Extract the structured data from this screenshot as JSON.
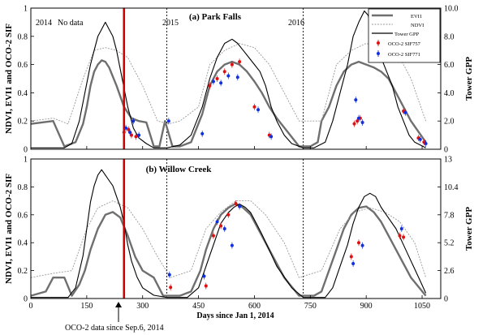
{
  "annotation": {
    "oco2_start_label": "OCO-2 data since Sep.6, 2014",
    "oco2_start_day": 250
  },
  "chart_data": [
    {
      "type": "line",
      "title": "(a) Park Falls",
      "xlabel": "Days since Jan 1, 2014",
      "ylabel": "NDVI, EVI1 and OCO-2 SIF",
      "y2label": "Tower GPP",
      "xlim": [
        0,
        1100
      ],
      "ylim": [
        0,
        1
      ],
      "y2lim": [
        0,
        10
      ],
      "xticks": [
        "0",
        "150",
        "300",
        "450",
        "600",
        "750",
        "900",
        "1050"
      ],
      "yticks": [
        "0",
        "0.2",
        "0.4",
        "0.6",
        "0.8",
        "1"
      ],
      "y2ticks": [
        "0",
        "2.0",
        "4.0",
        "6.0",
        "8.0",
        "10.0"
      ],
      "year_labels": [
        {
          "label": "2014",
          "day": 10
        },
        {
          "label": "No data",
          "day": 75
        },
        {
          "label": "2015",
          "day": 375
        },
        {
          "label": "2016",
          "day": 740
        }
      ],
      "year_boundaries": [
        365,
        731
      ],
      "oco2_start_day": 250,
      "legend": [
        {
          "key": "evi",
          "label": "EVI1"
        },
        {
          "key": "ndvi",
          "label": "NDVI"
        },
        {
          "key": "gpp",
          "label": "Tower GPP"
        },
        {
          "key": "sif757",
          "label": "OCO-2 SIF757"
        },
        {
          "key": "sif771",
          "label": "OCO-2 SIF771"
        }
      ],
      "series": [
        {
          "name": "EVI1",
          "x": [
            0,
            60,
            90,
            120,
            140,
            150,
            160,
            170,
            180,
            190,
            200,
            210,
            230,
            250,
            270,
            290,
            310,
            330,
            345,
            360,
            380,
            400,
            430,
            460,
            480,
            500,
            520,
            540,
            560,
            580,
            600,
            620,
            640,
            660,
            690,
            720,
            750,
            770,
            780,
            800,
            820,
            840,
            860,
            880,
            900,
            920,
            940,
            960,
            980,
            1000,
            1020,
            1060
          ],
          "y": [
            0.18,
            0.2,
            0.02,
            0.05,
            0.18,
            0.3,
            0.45,
            0.55,
            0.6,
            0.63,
            0.62,
            0.58,
            0.45,
            0.3,
            0.22,
            0.2,
            0.19,
            0.02,
            0.02,
            0.2,
            0.02,
            0.02,
            0.05,
            0.25,
            0.45,
            0.55,
            0.6,
            0.62,
            0.6,
            0.55,
            0.48,
            0.4,
            0.3,
            0.22,
            0.12,
            0.02,
            0.02,
            0.05,
            0.2,
            0.3,
            0.45,
            0.55,
            0.6,
            0.62,
            0.6,
            0.58,
            0.55,
            0.5,
            0.4,
            0.3,
            0.2,
            0.05
          ]
        },
        {
          "name": "NDVI",
          "x": [
            0,
            60,
            100,
            140,
            170,
            200,
            230,
            260,
            300,
            340,
            370,
            400,
            450,
            480,
            520,
            560,
            600,
            640,
            680,
            720,
            780,
            820,
            860,
            900,
            940,
            980,
            1020,
            1060
          ],
          "y": [
            0.2,
            0.22,
            0.18,
            0.5,
            0.7,
            0.72,
            0.7,
            0.65,
            0.45,
            0.2,
            0.18,
            0.2,
            0.3,
            0.6,
            0.7,
            0.75,
            0.72,
            0.6,
            0.4,
            0.2,
            0.2,
            0.6,
            0.7,
            0.75,
            0.72,
            0.7,
            0.5,
            0.2
          ]
        },
        {
          "name": "Tower GPP",
          "x": [
            0,
            90,
            110,
            130,
            145,
            160,
            170,
            180,
            190,
            200,
            210,
            220,
            230,
            245,
            260,
            275,
            290,
            310,
            330,
            365,
            400,
            430,
            460,
            480,
            500,
            520,
            540,
            555,
            570,
            585,
            600,
            615,
            630,
            645,
            660,
            680,
            700,
            731,
            760,
            790,
            810,
            830,
            850,
            865,
            880,
            895,
            905,
            915,
            925,
            940,
            955,
            970,
            985,
            1000,
            1015,
            1030,
            1060
          ],
          "y": [
            0.1,
            0.1,
            0.4,
            2,
            4,
            6,
            7,
            8,
            8.5,
            9,
            8.5,
            8,
            7,
            5,
            3,
            1.5,
            0.8,
            0.4,
            0.1,
            0.1,
            0.3,
            1,
            3,
            5,
            6.5,
            7.5,
            7.8,
            7.5,
            7,
            6.5,
            6,
            5.5,
            4.5,
            3,
            2,
            1,
            0.4,
            0.1,
            0.1,
            0.5,
            2,
            4,
            6,
            8,
            9,
            9.8,
            9.5,
            8.5,
            7.5,
            6.5,
            5.5,
            4.5,
            3,
            2,
            1,
            0.5,
            0.1
          ]
        }
      ],
      "points": {
        "sif757": {
          "x": [
            250,
            262,
            270,
            282,
            480,
            500,
            520,
            540,
            560,
            600,
            640,
            868,
            876,
            884,
            1000,
            1040,
            1055
          ],
          "y": [
            0.12,
            0.14,
            0.1,
            0.09,
            0.45,
            0.5,
            0.55,
            0.6,
            0.62,
            0.3,
            0.1,
            0.18,
            0.2,
            0.22,
            0.27,
            0.08,
            0.05
          ]
        },
        "sif771": {
          "x": [
            255,
            266,
            275,
            290,
            370,
            460,
            490,
            510,
            530,
            555,
            610,
            645,
            872,
            880,
            890,
            1005,
            1045,
            1060
          ],
          "y": [
            0.15,
            0.12,
            0.2,
            0.1,
            0.2,
            0.11,
            0.48,
            0.47,
            0.52,
            0.51,
            0.28,
            0.09,
            0.35,
            0.22,
            0.19,
            0.26,
            0.07,
            0.04
          ]
        }
      }
    },
    {
      "type": "line",
      "title": "(b) Willow Creek",
      "xlabel": "Days since Jan 1, 2014",
      "ylabel": "NDVI, EVI1 and OCO-2 SIF",
      "y2label": "Tower GPP",
      "xlim": [
        0,
        1100
      ],
      "ylim": [
        0,
        1
      ],
      "y2lim": [
        0,
        13
      ],
      "xticks": [
        "0",
        "150",
        "300",
        "450",
        "600",
        "750",
        "900",
        "1050"
      ],
      "yticks": [
        "0",
        "0.2",
        "0.4",
        "0.6",
        "0.8",
        "1"
      ],
      "y2ticks": [
        "0",
        "2.6",
        "5.2",
        "7.8",
        "10.4",
        "13"
      ],
      "year_boundaries": [
        365,
        731
      ],
      "oco2_start_day": 250,
      "series": [
        {
          "name": "EVI1",
          "x": [
            0,
            40,
            60,
            90,
            110,
            130,
            145,
            160,
            180,
            200,
            220,
            240,
            260,
            280,
            300,
            330,
            355,
            375,
            400,
            430,
            455,
            470,
            490,
            510,
            530,
            550,
            570,
            590,
            610,
            630,
            650,
            680,
            720,
            760,
            780,
            800,
            820,
            840,
            860,
            880,
            900,
            920,
            940,
            960,
            980,
            1000,
            1020,
            1060
          ],
          "y": [
            0.02,
            0.05,
            0.15,
            0.15,
            0.02,
            0.1,
            0.2,
            0.35,
            0.5,
            0.6,
            0.62,
            0.58,
            0.45,
            0.3,
            0.2,
            0.15,
            0.02,
            0.02,
            0.02,
            0.05,
            0.2,
            0.35,
            0.5,
            0.6,
            0.65,
            0.68,
            0.65,
            0.6,
            0.5,
            0.4,
            0.3,
            0.15,
            0.02,
            0.02,
            0.05,
            0.2,
            0.35,
            0.5,
            0.6,
            0.65,
            0.66,
            0.62,
            0.55,
            0.45,
            0.35,
            0.25,
            0.15,
            0.02
          ]
        },
        {
          "name": "NDVI",
          "x": [
            0,
            60,
            110,
            150,
            180,
            220,
            260,
            300,
            340,
            375,
            430,
            470,
            510,
            550,
            590,
            630,
            680,
            720,
            780,
            830,
            870,
            910,
            950,
            990,
            1030,
            1060
          ],
          "y": [
            0.15,
            0.18,
            0.2,
            0.5,
            0.65,
            0.7,
            0.65,
            0.5,
            0.3,
            0.15,
            0.2,
            0.5,
            0.62,
            0.7,
            0.7,
            0.6,
            0.4,
            0.15,
            0.2,
            0.5,
            0.62,
            0.65,
            0.62,
            0.55,
            0.4,
            0.15
          ]
        },
        {
          "name": "Tower GPP",
          "x": [
            0,
            100,
            120,
            140,
            150,
            160,
            170,
            180,
            190,
            200,
            210,
            220,
            230,
            240,
            250,
            260,
            270,
            285,
            300,
            330,
            365,
            420,
            450,
            470,
            490,
            510,
            530,
            545,
            560,
            575,
            590,
            605,
            620,
            640,
            660,
            680,
            700,
            731,
            790,
            810,
            830,
            850,
            865,
            880,
            895,
            910,
            925,
            940,
            960,
            980,
            1000,
            1020,
            1040,
            1060
          ],
          "y": [
            0.1,
            0.1,
            1,
            4,
            6.5,
            9,
            10.5,
            11.5,
            12,
            11.5,
            11,
            10.5,
            9.5,
            8.5,
            7,
            5,
            3.5,
            2,
            1,
            0.3,
            0.1,
            0.1,
            1,
            3,
            5,
            7,
            8,
            8.5,
            8.8,
            8.5,
            8,
            7,
            6,
            4.5,
            3,
            2,
            1,
            0.1,
            0.1,
            1,
            3,
            5,
            7,
            8.5,
            9.5,
            9.8,
            9.5,
            8.5,
            7.5,
            6.5,
            5,
            3.5,
            2,
            0.5
          ]
        }
      ],
      "points": {
        "sif757": {
          "x": [
            375,
            470,
            490,
            510,
            530,
            550,
            860,
            880,
            990,
            1000
          ],
          "y": [
            0.08,
            0.09,
            0.45,
            0.52,
            0.6,
            0.68,
            0.3,
            0.4,
            0.45,
            0.44
          ]
        },
        "sif771": {
          "x": [
            372,
            465,
            500,
            520,
            540,
            560,
            865,
            890,
            995
          ],
          "y": [
            0.17,
            0.16,
            0.55,
            0.5,
            0.38,
            0.66,
            0.25,
            0.38,
            0.5
          ]
        }
      }
    }
  ]
}
